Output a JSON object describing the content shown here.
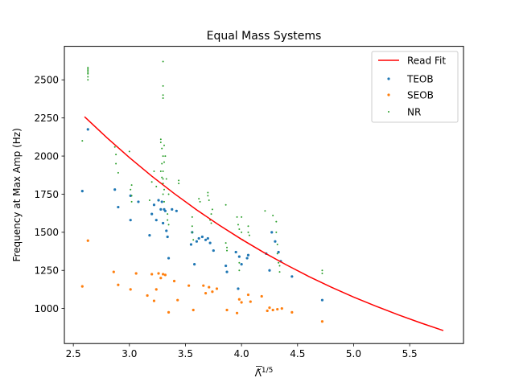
{
  "chart_data": {
    "type": "scatter",
    "title": "Equal Mass Systems",
    "xlabel": "Λ̃",
    "xlabel_sup": "1/5",
    "ylabel": "Frequency at Max Amp (Hz)",
    "xlim": [
      2.42,
      5.98
    ],
    "ylim": [
      770,
      2720
    ],
    "xticks": [
      2.5,
      3.0,
      3.5,
      4.0,
      4.5,
      5.0,
      5.5
    ],
    "xtick_labels": [
      "2.5",
      "3.0",
      "3.5",
      "4.0",
      "4.5",
      "5.0",
      "5.5"
    ],
    "yticks": [
      1000,
      1250,
      1500,
      1750,
      2000,
      2250,
      2500
    ],
    "ytick_labels": [
      "1000",
      "1250",
      "1500",
      "1750",
      "2000",
      "2250",
      "2500"
    ],
    "grid": false,
    "legend_position": "top-right",
    "legend": [
      "Read Fit",
      "TEOB",
      "SEOB",
      "NR"
    ],
    "colors": {
      "fit": "#ff0000",
      "TEOB": "#1f77b4",
      "SEOB": "#ff7f0e",
      "NR": "#2ca02c"
    },
    "fit_line": {
      "name": "Read Fit",
      "x": [
        2.6,
        2.8,
        3.0,
        3.2,
        3.4,
        3.6,
        3.8,
        4.0,
        4.2,
        4.4,
        4.6,
        4.8,
        5.0,
        5.2,
        5.4,
        5.6,
        5.8
      ],
      "y": [
        2258,
        2120,
        1990,
        1868,
        1754,
        1647,
        1547,
        1454,
        1367,
        1286,
        1210,
        1140,
        1075,
        1015,
        958,
        905,
        855
      ]
    },
    "series": [
      {
        "name": "TEOB",
        "x": [
          2.58,
          2.63,
          2.87,
          2.9,
          3.01,
          3.01,
          3.08,
          3.18,
          3.2,
          3.22,
          3.24,
          3.26,
          3.28,
          3.29,
          3.3,
          3.31,
          3.32,
          3.33,
          3.34,
          3.35,
          3.38,
          3.42,
          3.55,
          3.56,
          3.58,
          3.6,
          3.62,
          3.65,
          3.68,
          3.7,
          3.72,
          3.75,
          3.86,
          3.87,
          3.95,
          3.97,
          3.98,
          4.0,
          4.05,
          4.06,
          4.22,
          4.25,
          4.27,
          4.3,
          4.33,
          4.35,
          4.45,
          4.72
        ],
        "y": [
          1770,
          2175,
          1780,
          1665,
          1740,
          1580,
          1700,
          1480,
          1620,
          1680,
          1580,
          1710,
          1650,
          1700,
          1560,
          1650,
          1640,
          1510,
          1470,
          1330,
          1650,
          1640,
          1420,
          1500,
          1290,
          1440,
          1460,
          1470,
          1450,
          1460,
          1430,
          1380,
          1280,
          1240,
          1370,
          1130,
          1340,
          1290,
          1330,
          1350,
          1360,
          1250,
          1500,
          1440,
          1370,
          1310,
          1210,
          1055
        ]
      },
      {
        "name": "SEOB",
        "x": [
          2.58,
          2.63,
          2.86,
          2.9,
          3.01,
          3.06,
          3.16,
          3.2,
          3.22,
          3.24,
          3.26,
          3.28,
          3.3,
          3.32,
          3.35,
          3.4,
          3.43,
          3.53,
          3.57,
          3.66,
          3.68,
          3.71,
          3.74,
          3.78,
          3.87,
          3.96,
          3.98,
          4.0,
          4.06,
          4.08,
          4.18,
          4.23,
          4.25,
          4.28,
          4.32,
          4.36,
          4.45,
          4.72
        ],
        "y": [
          1145,
          1445,
          1240,
          1155,
          1125,
          1230,
          1085,
          1225,
          1050,
          1125,
          1230,
          1200,
          1225,
          1220,
          975,
          1180,
          1055,
          1150,
          990,
          1150,
          1100,
          1140,
          1110,
          1130,
          990,
          970,
          1060,
          1040,
          1090,
          1045,
          1080,
          985,
          1005,
          990,
          995,
          1000,
          975,
          915
        ]
      },
      {
        "name": "NR",
        "x": [
          2.58,
          2.63,
          2.63,
          2.63,
          2.63,
          2.63,
          2.63,
          2.63,
          2.87,
          2.88,
          2.88,
          2.9,
          3.0,
          3.01,
          3.02,
          3.02,
          3.02,
          3.18,
          3.2,
          3.22,
          3.24,
          3.28,
          3.28,
          3.28,
          3.29,
          3.29,
          3.29,
          3.3,
          3.3,
          3.3,
          3.3,
          3.3,
          3.3,
          3.3,
          3.3,
          3.3,
          3.31,
          3.31,
          3.31,
          3.31,
          3.32,
          3.33,
          3.34,
          3.34,
          3.35,
          3.35,
          3.44,
          3.44,
          3.56,
          3.56,
          3.56,
          3.57,
          3.62,
          3.63,
          3.7,
          3.7,
          3.71,
          3.72,
          3.73,
          3.73,
          3.74,
          3.86,
          3.86,
          3.87,
          3.87,
          3.96,
          3.97,
          3.98,
          3.98,
          3.98,
          4.0,
          4.0,
          4.01,
          4.06,
          4.06,
          4.07,
          4.21,
          4.28,
          4.31,
          4.31,
          4.32,
          4.32,
          4.33,
          4.34,
          4.34,
          4.72,
          4.72
        ],
        "y": [
          2100,
          2500,
          2520,
          2540,
          2550,
          2560,
          2570,
          2580,
          2060,
          1950,
          2010,
          1890,
          2030,
          1780,
          1810,
          1740,
          1700,
          1710,
          1830,
          1900,
          1800,
          2110,
          2090,
          1900,
          2050,
          1950,
          1860,
          2620,
          2400,
          2380,
          2460,
          2000,
          1900,
          1850,
          1820,
          1750,
          2070,
          1960,
          1700,
          1780,
          2000,
          1850,
          1620,
          1580,
          1750,
          1550,
          1840,
          1820,
          1600,
          1540,
          1500,
          1450,
          1720,
          1700,
          1760,
          1740,
          1710,
          1580,
          1620,
          1560,
          1650,
          1680,
          1430,
          1400,
          1380,
          1600,
          1550,
          1520,
          1300,
          1250,
          1600,
          1500,
          1450,
          1540,
          1500,
          1480,
          1640,
          1610,
          1570,
          1500,
          1420,
          1360,
          1300,
          1280,
          1240,
          1250,
          1230
        ]
      }
    ]
  }
}
